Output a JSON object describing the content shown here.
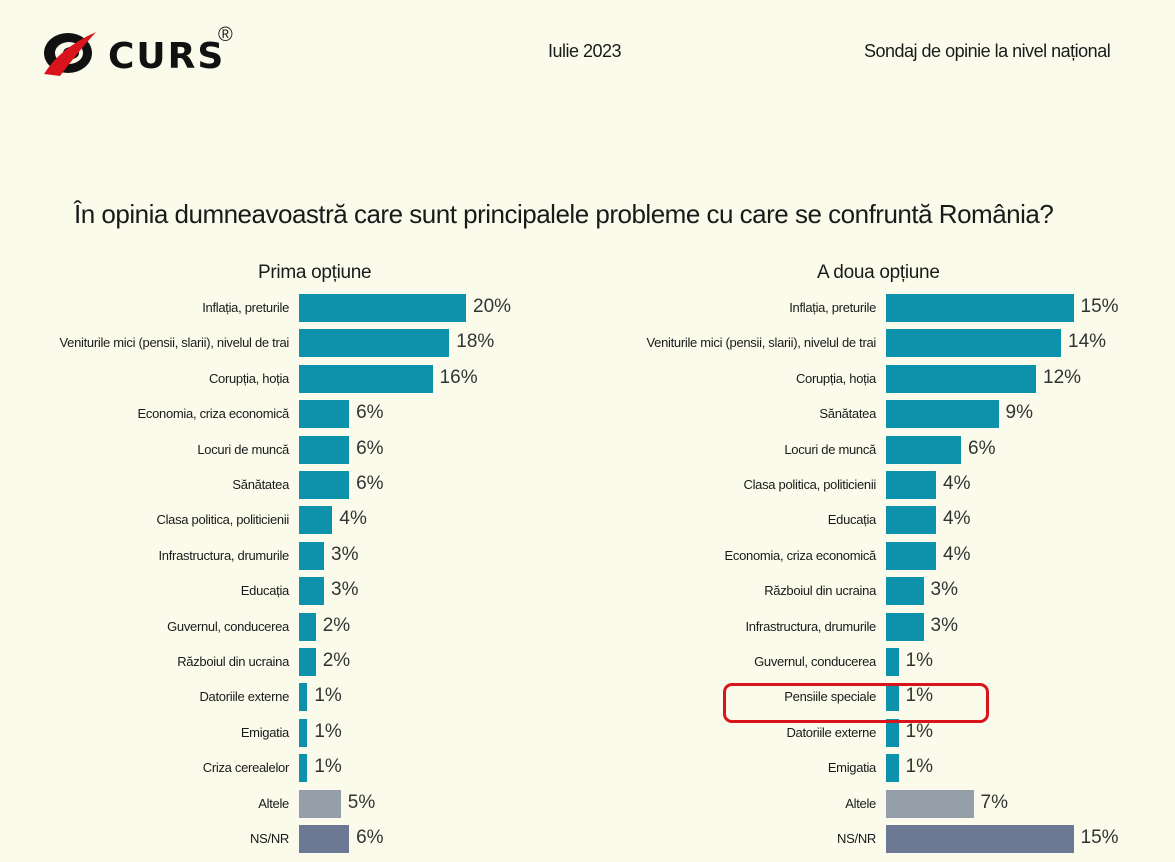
{
  "header": {
    "logo_text": "CURS",
    "logo_reg": "®",
    "date": "Iulie 2023",
    "survey_title": "Sondaj de opinie la nivel național"
  },
  "question": "În opinia dumneavoastră care sunt principalele probleme cu care se confruntă România?",
  "colors": {
    "primary": "#0c92ab",
    "other": "#959fa9",
    "nsnr": "#6c7894",
    "highlight": "#d9141c"
  },
  "chart_data": [
    {
      "type": "bar",
      "orientation": "horizontal",
      "title": "Prima opțiune",
      "categories": [
        "Inflația, preturile",
        "Veniturile mici (pensii, slarii), nivelul de trai",
        "Corupția, hoția",
        "Economia, criza economică",
        "Locuri de muncă",
        "Sănătatea",
        "Clasa politica, politicienii",
        "Infrastructura, drumurile",
        "Educația",
        "Guvernul, conducerea",
        "Războiul din ucraina",
        "Datoriile externe",
        "Emigatia",
        "Criza cerealelor",
        "Altele",
        "NS/NR"
      ],
      "values": [
        20,
        18,
        16,
        6,
        6,
        6,
        4,
        3,
        3,
        2,
        2,
        1,
        1,
        1,
        5,
        6
      ],
      "labels": [
        "20%",
        "18%",
        "16%",
        "6%",
        "6%",
        "6%",
        "4%",
        "3%",
        "3%",
        "2%",
        "2%",
        "1%",
        "1%",
        "1%",
        "5%",
        "6%"
      ]
    },
    {
      "type": "bar",
      "orientation": "horizontal",
      "title": "A doua opțiune",
      "categories": [
        "Inflația, preturile",
        "Veniturile mici (pensii, slarii), nivelul de trai",
        "Corupția, hoția",
        "Sănătatea",
        "Locuri de muncă",
        "Clasa politica, politicienii",
        "Educația",
        "Economia, criza economică",
        "Războiul din ucraina",
        "Infrastructura, drumurile",
        "Guvernul, conducerea",
        "Pensiile speciale",
        "Datoriile externe",
        "Emigatia",
        "Altele",
        "NS/NR"
      ],
      "values": [
        15,
        14,
        12,
        9,
        6,
        4,
        4,
        4,
        3,
        3,
        1,
        1,
        1,
        1,
        7,
        15
      ],
      "labels": [
        "15%",
        "14%",
        "12%",
        "9%",
        "6%",
        "4%",
        "4%",
        "4%",
        "3%",
        "3%",
        "1%",
        "1%",
        "1%",
        "1%",
        "7%",
        "15%"
      ],
      "highlighted_category": "Pensiile speciale"
    }
  ]
}
